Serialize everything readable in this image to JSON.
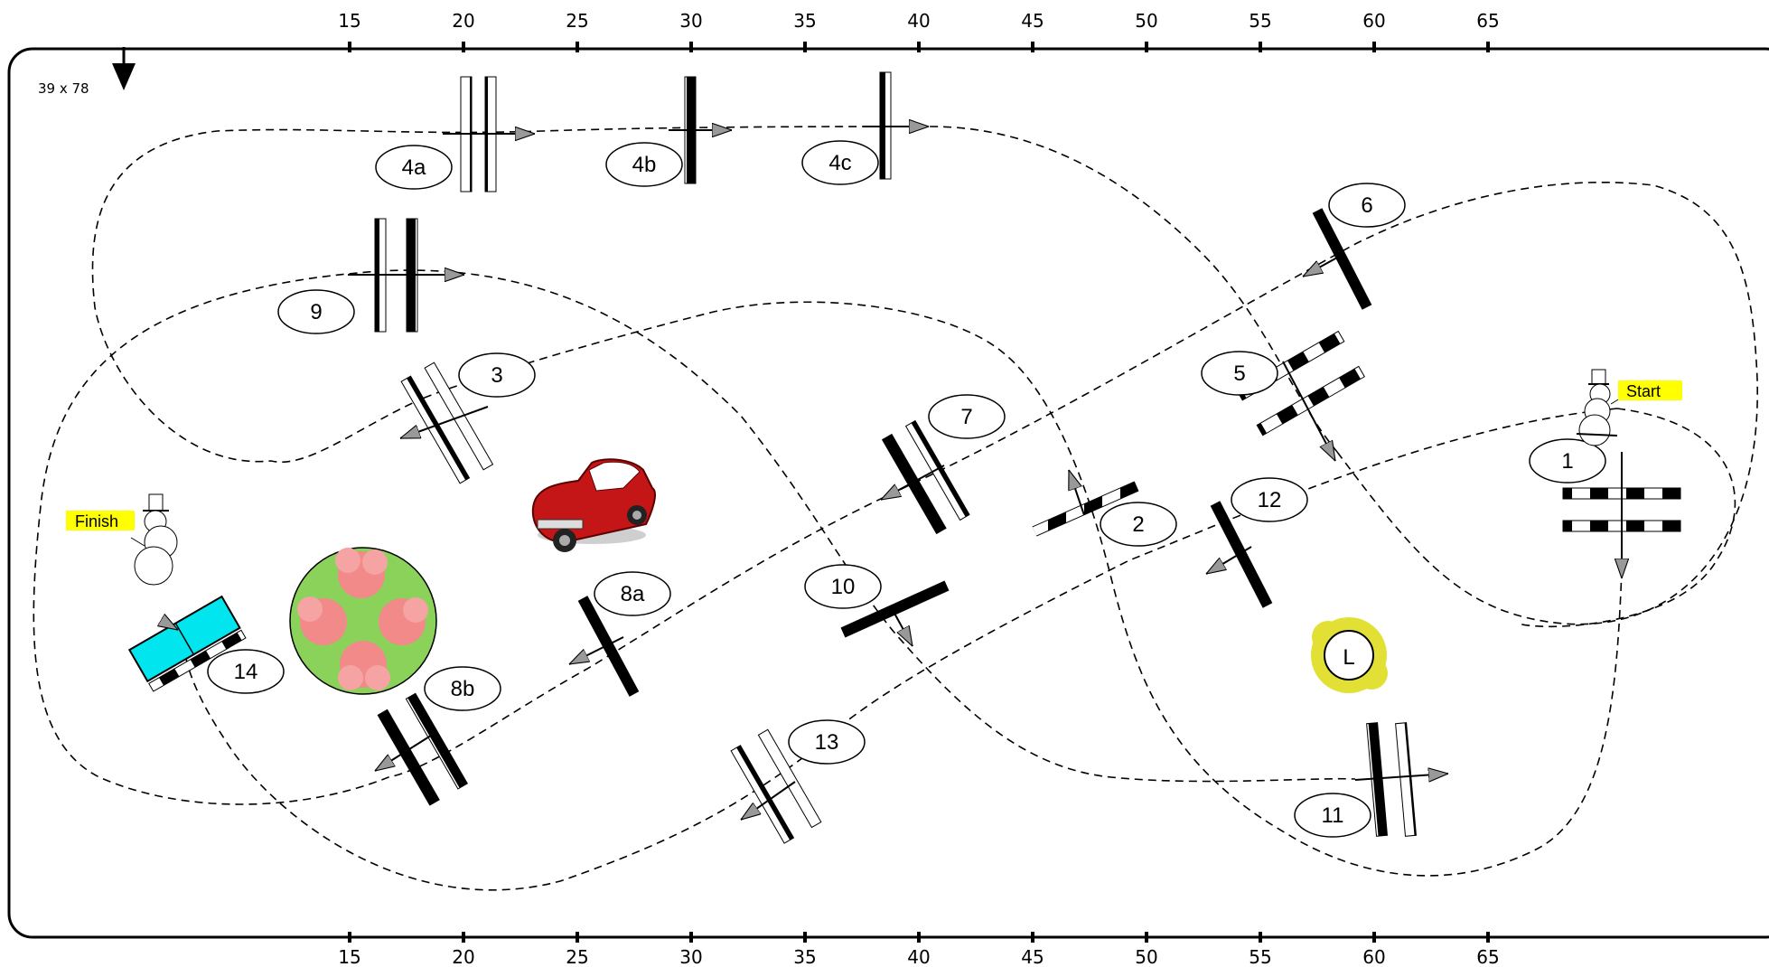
{
  "course": {
    "size_label": "39 x 78",
    "axis_ticks": [
      "15",
      "20",
      "25",
      "30",
      "35",
      "40",
      "45",
      "50",
      "55",
      "60",
      "65"
    ],
    "start_label": "Start",
    "finish_label": "Finish",
    "leash_marker": "L",
    "obstacle_numbers": [
      "1",
      "2",
      "3",
      "4a",
      "4b",
      "4c",
      "5",
      "6",
      "7",
      "8a",
      "8b",
      "9",
      "10",
      "11",
      "12",
      "13",
      "14"
    ]
  },
  "colors": {
    "border": "#000000",
    "start_tag": "#ffff00",
    "table_fill": "#00e5ee",
    "tree_circle": "#8ad25a",
    "tree_blob": "#f28a8a",
    "car_body": "#c41616",
    "leash_blob": "#e3e035"
  },
  "icons": [
    "down-arrow-icon",
    "snowman-icon",
    "car-icon",
    "tree-obstacle-icon",
    "leash-icon",
    "arrow-icon"
  ]
}
